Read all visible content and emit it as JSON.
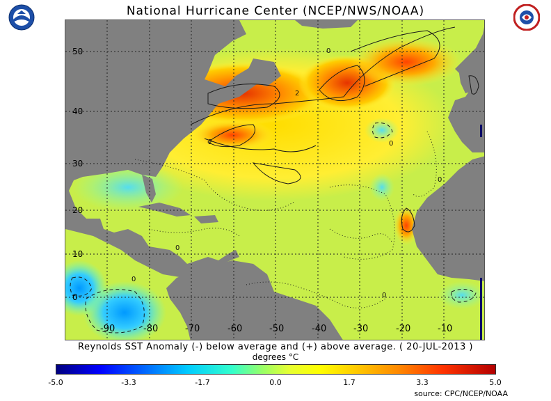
{
  "title": "National Hurricane Center (NCEP/NWS/NOAA)",
  "caption": "Reynolds SST Anomaly (-) below average and (+) above average. ( 20-JUL-2013 )",
  "units": "degrees °C",
  "source": "source:  CPC/NCEP/NOAA",
  "logos": {
    "left": "noaa-logo",
    "right": "national-weather-service-logo"
  },
  "map": {
    "lat_labels": [
      "50",
      "40",
      "30",
      "20",
      "10",
      "0"
    ],
    "lon_labels": [
      "-90",
      "-80",
      "-70",
      "-60",
      "-50",
      "-40",
      "-30",
      "-20",
      "-10"
    ],
    "contour_labels": [
      "0",
      "0",
      "0",
      "2",
      "2",
      "0",
      "0",
      "0"
    ]
  },
  "colorbar": {
    "ticks": [
      "-5.0",
      "-3.3",
      "-1.7",
      "0.0",
      "1.7",
      "3.3",
      "5.0"
    ],
    "range": [
      -5.0,
      5.0
    ],
    "colors": [
      "#00007f",
      "#0066ff",
      "#00ccff",
      "#99ff66",
      "#ffff00",
      "#ff8800",
      "#b30000"
    ]
  },
  "colors": {
    "land": "#808080",
    "ocean_neutral": "#ccee44",
    "warm_anomaly": "#ff5500",
    "cool_anomaly": "#33ccff"
  }
}
